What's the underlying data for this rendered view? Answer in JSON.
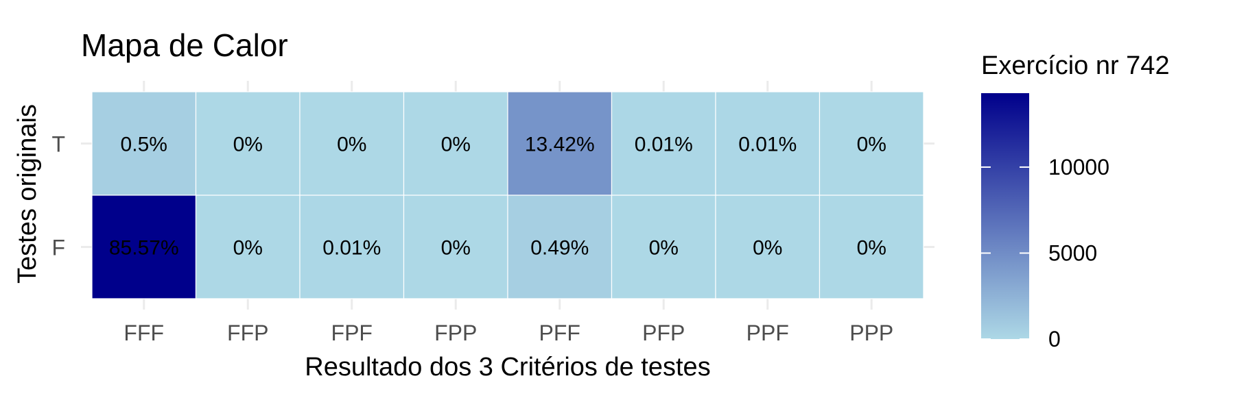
{
  "chart_data": {
    "type": "heatmap",
    "title": "Mapa de Calor",
    "xlabel": "Resultado dos 3 Critérios de testes",
    "ylabel": "Testes originais",
    "x_categories": [
      "FFF",
      "FFP",
      "FPF",
      "FPP",
      "PFF",
      "PFP",
      "PPF",
      "PPP"
    ],
    "y_categories": [
      "T",
      "F"
    ],
    "cells": [
      {
        "y": "T",
        "x": "FFF",
        "label": "0.5%",
        "value": 0.5
      },
      {
        "y": "T",
        "x": "FFP",
        "label": "0%",
        "value": 0
      },
      {
        "y": "T",
        "x": "FPF",
        "label": "0%",
        "value": 0
      },
      {
        "y": "T",
        "x": "FPP",
        "label": "0%",
        "value": 0
      },
      {
        "y": "T",
        "x": "PFF",
        "label": "13.42%",
        "value": 13.42
      },
      {
        "y": "T",
        "x": "PFP",
        "label": "0.01%",
        "value": 0.01
      },
      {
        "y": "T",
        "x": "PPF",
        "label": "0.01%",
        "value": 0.01
      },
      {
        "y": "T",
        "x": "PPP",
        "label": "0%",
        "value": 0
      },
      {
        "y": "F",
        "x": "FFF",
        "label": "85.57%",
        "value": 85.57
      },
      {
        "y": "F",
        "x": "FFP",
        "label": "0%",
        "value": 0
      },
      {
        "y": "F",
        "x": "FPF",
        "label": "0.01%",
        "value": 0.01
      },
      {
        "y": "F",
        "x": "FPP",
        "label": "0%",
        "value": 0
      },
      {
        "y": "F",
        "x": "PFF",
        "label": "0.49%",
        "value": 0.49
      },
      {
        "y": "F",
        "x": "PFP",
        "label": "0%",
        "value": 0
      },
      {
        "y": "F",
        "x": "PPF",
        "label": "0%",
        "value": 0
      },
      {
        "y": "F",
        "x": "PPP",
        "label": "0%",
        "value": 0
      }
    ],
    "legend": {
      "title": "Exercício nr 742",
      "ticks": [
        0,
        5000,
        10000
      ],
      "tick_labels": [
        "0",
        "5000",
        "10000"
      ],
      "range": [
        0,
        14300
      ],
      "placement": "right"
    },
    "color_scale": {
      "low": "#add8e6",
      "high": "#00008b"
    },
    "grid": true
  }
}
